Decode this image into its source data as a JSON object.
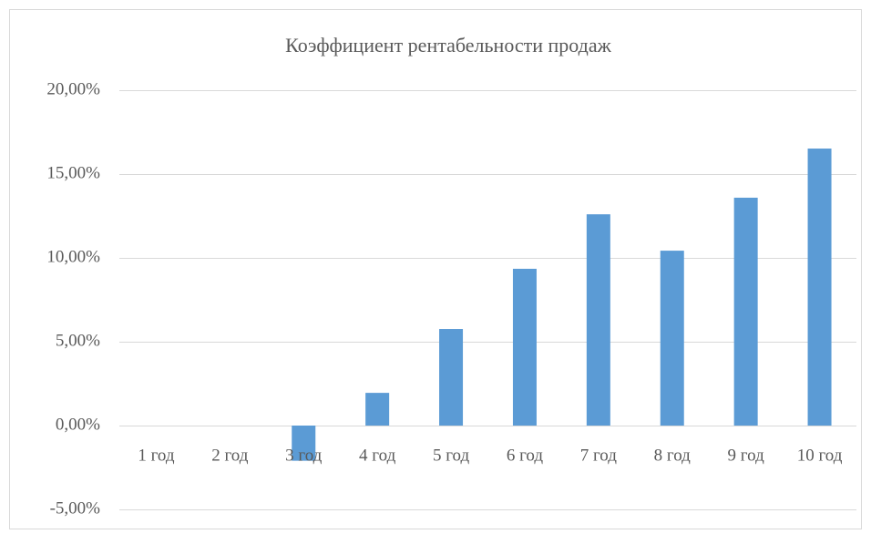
{
  "chart_data": {
    "type": "bar",
    "title": "Коэффициент рентабельности продаж",
    "categories": [
      "1 год",
      "2 год",
      "3 год",
      "4 год",
      "5 год",
      "6 год",
      "7 год",
      "8 год",
      "9 год",
      "10 год"
    ],
    "values": [
      0,
      0,
      -2.1,
      1.95,
      5.76,
      9.35,
      12.6,
      10.43,
      13.59,
      16.52
    ],
    "color": "#5b9bd5",
    "ylim": [
      -5,
      20
    ],
    "yticks": [
      {
        "value": -5,
        "label": "-5,00%"
      },
      {
        "value": 0,
        "label": "0,00%"
      },
      {
        "value": 5,
        "label": "5,00%"
      },
      {
        "value": 10,
        "label": "10,00%"
      },
      {
        "value": 15,
        "label": "15,00%"
      },
      {
        "value": 20,
        "label": "20,00%"
      }
    ],
    "grid": true
  }
}
